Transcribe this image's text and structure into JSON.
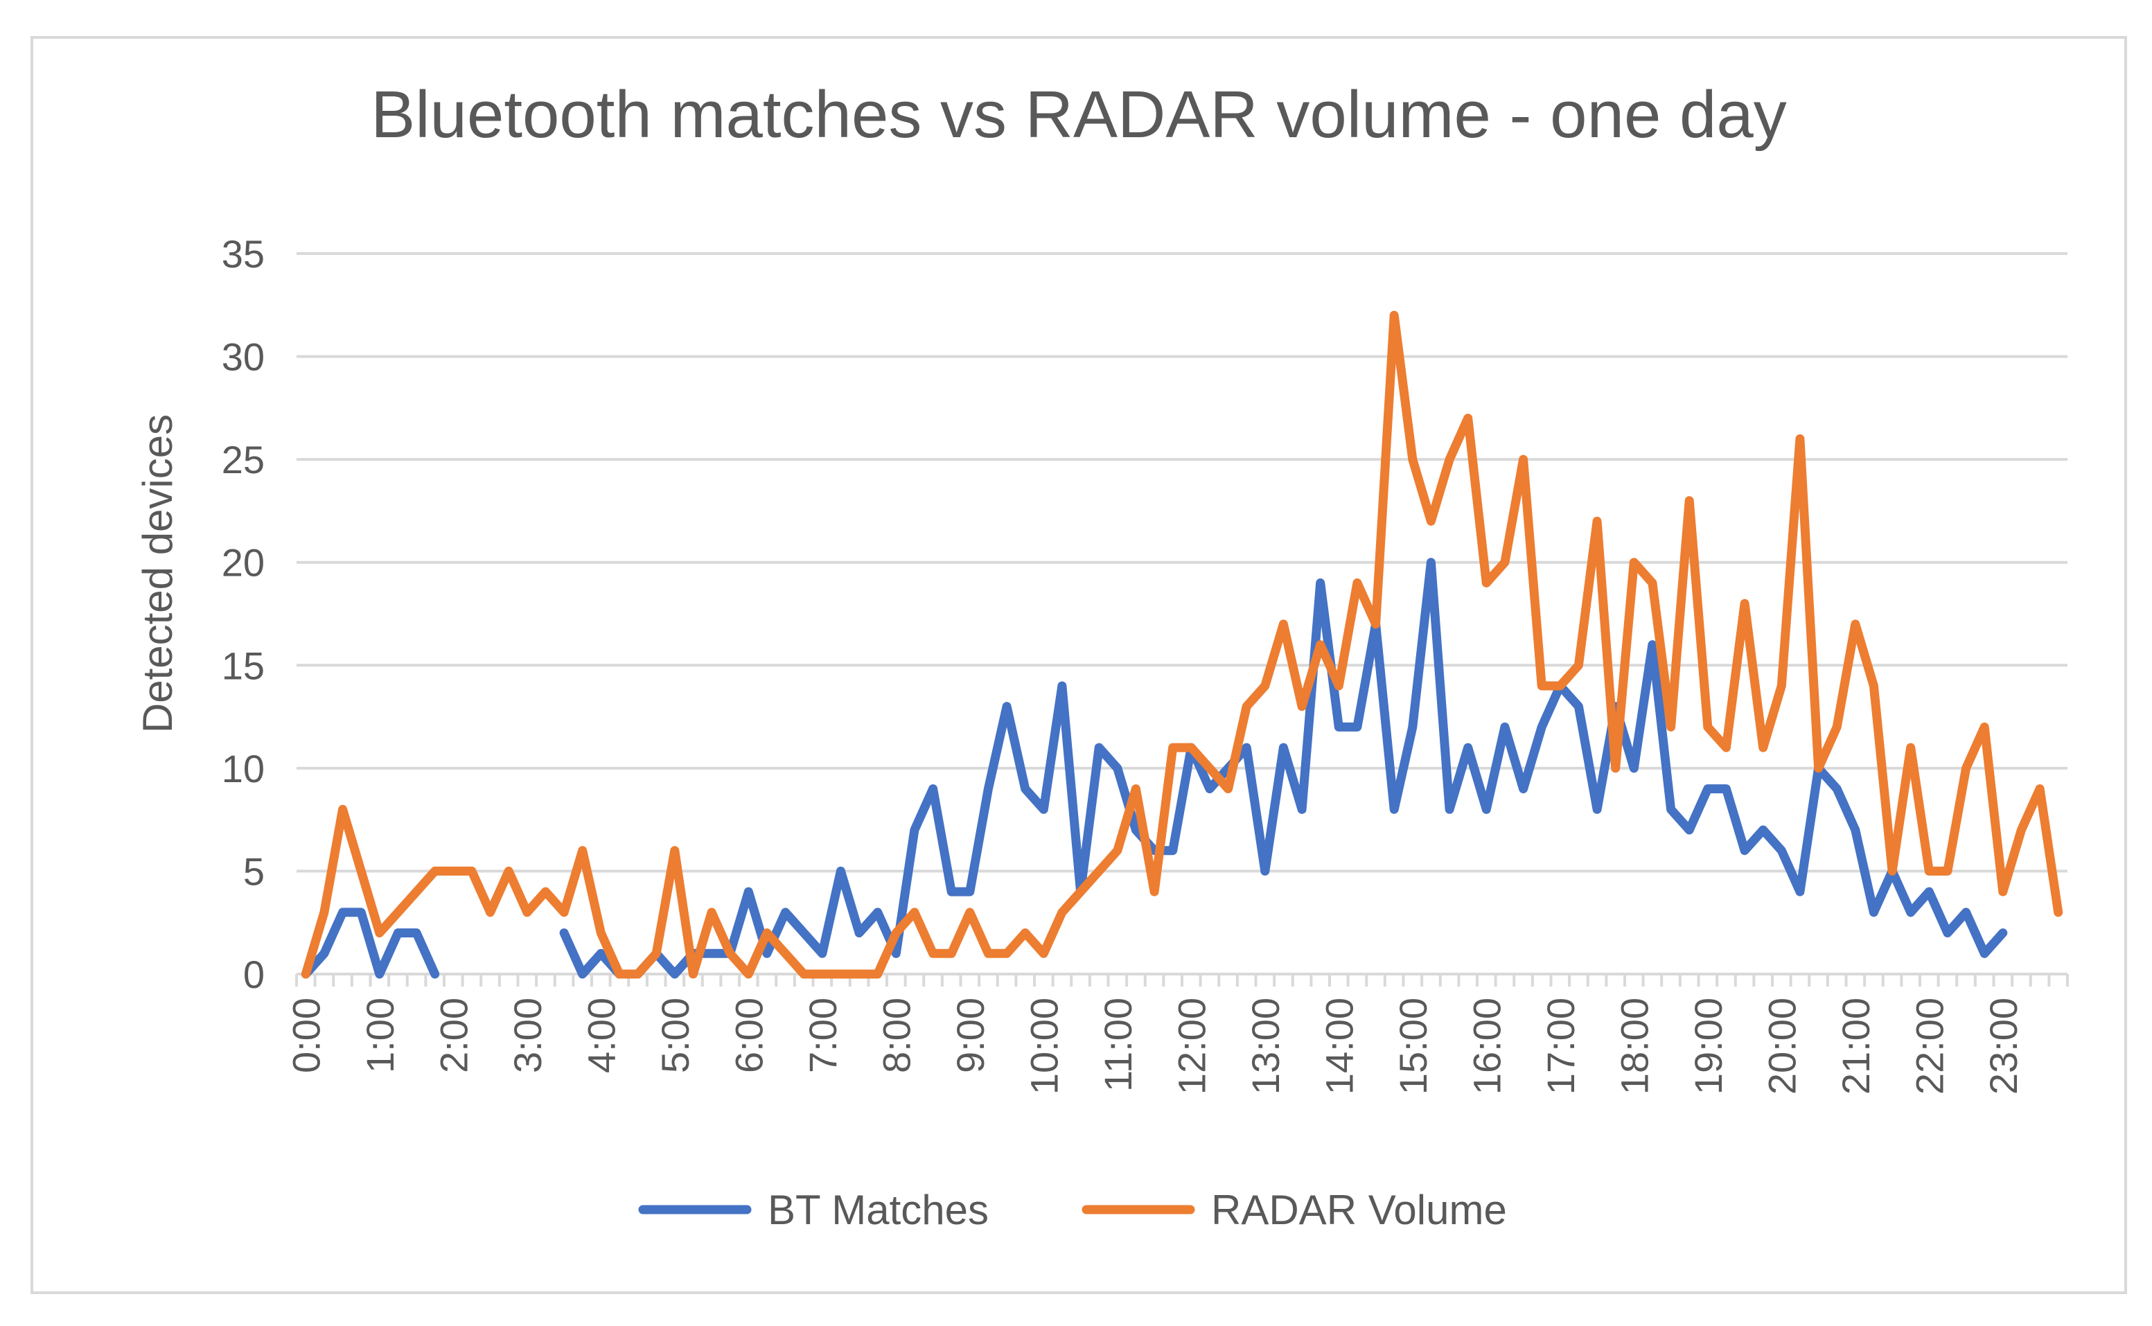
{
  "chart_data": {
    "type": "line",
    "title": "Bluetooth matches vs RADAR volume - one day",
    "xlabel": "",
    "ylabel": "Detected devices",
    "ylim": [
      0,
      35
    ],
    "yticks": [
      0,
      5,
      10,
      15,
      20,
      25,
      30,
      35
    ],
    "grid": true,
    "legend_position": "bottom",
    "x": [
      "0:00",
      "0:15",
      "0:30",
      "0:45",
      "1:00",
      "1:15",
      "1:30",
      "1:45",
      "2:00",
      "2:15",
      "2:30",
      "2:45",
      "3:00",
      "3:15",
      "3:30",
      "3:45",
      "4:00",
      "4:15",
      "4:30",
      "4:45",
      "5:00",
      "5:15",
      "5:30",
      "5:45",
      "6:00",
      "6:15",
      "6:30",
      "6:45",
      "7:00",
      "7:15",
      "7:30",
      "7:45",
      "8:00",
      "8:15",
      "8:30",
      "8:45",
      "9:00",
      "9:15",
      "9:30",
      "9:45",
      "10:00",
      "10:15",
      "10:30",
      "10:45",
      "11:00",
      "11:15",
      "11:30",
      "11:45",
      "12:00",
      "12:15",
      "12:30",
      "12:45",
      "13:00",
      "13:15",
      "13:30",
      "13:45",
      "14:00",
      "14:15",
      "14:30",
      "14:45",
      "15:00",
      "15:15",
      "15:30",
      "15:45",
      "16:00",
      "16:15",
      "16:30",
      "16:45",
      "17:00",
      "17:15",
      "17:30",
      "17:45",
      "18:00",
      "18:15",
      "18:30",
      "18:45",
      "19:00",
      "19:15",
      "19:30",
      "19:45",
      "20:00",
      "20:15",
      "20:30",
      "20:45",
      "21:00",
      "21:15",
      "21:30",
      "21:45",
      "22:00",
      "22:15",
      "22:30",
      "22:45",
      "23:00",
      "23:15",
      "23:30",
      "23:45"
    ],
    "xtick_labels": [
      "0:00",
      "1:00",
      "2:00",
      "3:00",
      "4:00",
      "5:00",
      "6:00",
      "7:00",
      "8:00",
      "9:00",
      "10:00",
      "11:00",
      "12:00",
      "13:00",
      "14:00",
      "15:00",
      "16:00",
      "17:00",
      "18:00",
      "19:00",
      "20:00",
      "21:00",
      "22:00",
      "23:00"
    ],
    "series": [
      {
        "name": "BT Matches",
        "color": "#4472C4",
        "values": [
          0,
          1,
          3,
          3,
          0,
          2,
          2,
          0,
          null,
          null,
          null,
          null,
          null,
          null,
          2,
          0,
          1,
          0,
          0,
          1,
          0,
          1,
          1,
          1,
          4,
          1,
          3,
          2,
          1,
          5,
          2,
          3,
          1,
          7,
          9,
          4,
          4,
          9,
          13,
          9,
          8,
          14,
          4,
          11,
          10,
          7,
          6,
          6,
          11,
          9,
          10,
          11,
          5,
          11,
          8,
          19,
          12,
          12,
          17,
          8,
          12,
          20,
          8,
          11,
          8,
          12,
          9,
          12,
          14,
          13,
          8,
          13,
          10,
          16,
          8,
          7,
          9,
          9,
          6,
          7,
          6,
          4,
          10,
          9,
          7,
          3,
          5,
          3,
          4,
          2,
          3,
          1,
          2,
          null,
          null,
          null
        ]
      },
      {
        "name": "RADAR Volume",
        "color": "#ED7D31",
        "values": [
          0,
          3,
          8,
          5,
          2,
          3,
          4,
          5,
          5,
          5,
          3,
          5,
          3,
          4,
          3,
          6,
          2,
          0,
          0,
          1,
          6,
          0,
          3,
          1,
          0,
          2,
          1,
          0,
          0,
          0,
          0,
          0,
          2,
          3,
          1,
          1,
          3,
          1,
          1,
          2,
          1,
          3,
          4,
          5,
          6,
          9,
          4,
          11,
          11,
          10,
          9,
          13,
          14,
          17,
          13,
          16,
          14,
          19,
          17,
          32,
          25,
          22,
          25,
          27,
          19,
          20,
          25,
          14,
          14,
          15,
          22,
          10,
          20,
          19,
          12,
          23,
          12,
          11,
          18,
          11,
          14,
          26,
          10,
          12,
          17,
          14,
          5,
          11,
          5,
          5,
          10,
          12,
          4,
          7,
          9,
          3
        ]
      }
    ]
  }
}
